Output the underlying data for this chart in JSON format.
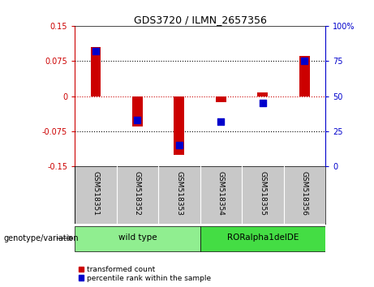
{
  "title": "GDS3720 / ILMN_2657356",
  "samples": [
    "GSM518351",
    "GSM518352",
    "GSM518353",
    "GSM518354",
    "GSM518355",
    "GSM518356"
  ],
  "red_values": [
    0.105,
    -0.065,
    -0.125,
    -0.012,
    0.008,
    0.085
  ],
  "blue_values_pct": [
    82,
    33,
    15,
    32,
    45,
    75
  ],
  "groups": [
    {
      "label": "wild type",
      "indices": [
        0,
        1,
        2
      ],
      "color": "#90EE90"
    },
    {
      "label": "RORalpha1delDE",
      "indices": [
        3,
        4,
        5
      ],
      "color": "#44DD44"
    }
  ],
  "ylim_left": [
    -0.15,
    0.15
  ],
  "ylim_right": [
    0,
    100
  ],
  "left_ticks": [
    -0.15,
    -0.075,
    0,
    0.075,
    0.15
  ],
  "right_ticks": [
    0,
    25,
    50,
    75,
    100
  ],
  "left_tick_labels": [
    "-0.15",
    "-0.075",
    "0",
    "0.075",
    "0.15"
  ],
  "right_tick_labels": [
    "0",
    "25",
    "50",
    "75",
    "100%"
  ],
  "left_color": "#CC0000",
  "right_color": "#0000CC",
  "bar_width": 0.25,
  "blue_marker_size": 35,
  "genotype_label": "genotype/variation",
  "legend_red": "transformed count",
  "legend_blue": "percentile rank within the sample",
  "background_color": "#ffffff",
  "plot_bg": "#ffffff",
  "dotted_lines": [
    -0.075,
    0.0,
    0.075
  ],
  "sample_panel_color": "#C8C8C8",
  "group1_color": "#90EE90",
  "group2_color": "#44DD44"
}
